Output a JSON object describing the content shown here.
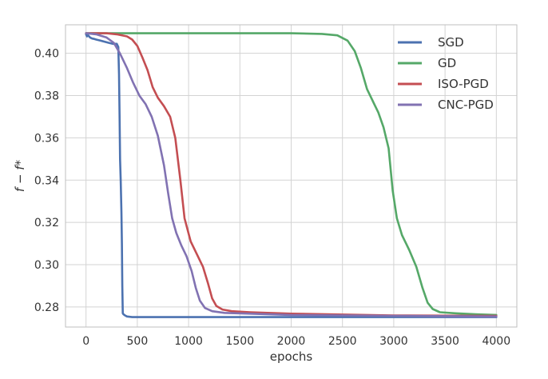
{
  "chart_data": {
    "type": "line",
    "title": "",
    "xlabel": "epochs",
    "ylabel": "f − f*",
    "xlim": [
      -200,
      4200
    ],
    "ylim": [
      0.2705,
      0.4135
    ],
    "xticks": [
      0,
      500,
      1000,
      1500,
      2000,
      2500,
      3000,
      3500,
      4000
    ],
    "xtick_labels": [
      "0",
      "500",
      "1000",
      "1500",
      "2000",
      "2500",
      "3000",
      "3500",
      "4000"
    ],
    "yticks": [
      0.28,
      0.3,
      0.32,
      0.34,
      0.36,
      0.38,
      0.4
    ],
    "ytick_labels": [
      "0.28",
      "0.30",
      "0.32",
      "0.34",
      "0.36",
      "0.38",
      "0.40"
    ],
    "grid": true,
    "legend_position": "top-right",
    "series": [
      {
        "name": "SGD",
        "color": "#4c72b0",
        "points": [
          [
            0,
            0.409
          ],
          [
            10,
            0.408
          ],
          [
            20,
            0.4085
          ],
          [
            40,
            0.4075
          ],
          [
            60,
            0.407
          ],
          [
            80,
            0.4068
          ],
          [
            100,
            0.4065
          ],
          [
            140,
            0.406
          ],
          [
            180,
            0.4055
          ],
          [
            220,
            0.405
          ],
          [
            260,
            0.4045
          ],
          [
            300,
            0.4045
          ],
          [
            315,
            0.403
          ],
          [
            322,
            0.39
          ],
          [
            327,
            0.37
          ],
          [
            332,
            0.35
          ],
          [
            338,
            0.34
          ],
          [
            345,
            0.325
          ],
          [
            350,
            0.31
          ],
          [
            354,
            0.29
          ],
          [
            358,
            0.277
          ],
          [
            365,
            0.2765
          ],
          [
            380,
            0.276
          ],
          [
            400,
            0.2755
          ],
          [
            450,
            0.2752
          ],
          [
            600,
            0.2752
          ],
          [
            1000,
            0.2752
          ],
          [
            2000,
            0.2752
          ],
          [
            3000,
            0.2752
          ],
          [
            4000,
            0.2752
          ]
        ]
      },
      {
        "name": "GD",
        "color": "#55a868",
        "points": [
          [
            0,
            0.4095
          ],
          [
            500,
            0.4095
          ],
          [
            1000,
            0.4095
          ],
          [
            1500,
            0.4095
          ],
          [
            2000,
            0.4095
          ],
          [
            2300,
            0.4092
          ],
          [
            2450,
            0.4085
          ],
          [
            2550,
            0.406
          ],
          [
            2620,
            0.401
          ],
          [
            2680,
            0.393
          ],
          [
            2740,
            0.383
          ],
          [
            2800,
            0.377
          ],
          [
            2850,
            0.372
          ],
          [
            2900,
            0.365
          ],
          [
            2950,
            0.355
          ],
          [
            2990,
            0.335
          ],
          [
            3030,
            0.322
          ],
          [
            3080,
            0.314
          ],
          [
            3150,
            0.307
          ],
          [
            3220,
            0.299
          ],
          [
            3280,
            0.289
          ],
          [
            3330,
            0.282
          ],
          [
            3380,
            0.279
          ],
          [
            3450,
            0.2775
          ],
          [
            3600,
            0.277
          ],
          [
            3800,
            0.2765
          ],
          [
            4000,
            0.2762
          ]
        ]
      },
      {
        "name": "ISO-PGD",
        "color": "#c44e52",
        "points": [
          [
            0,
            0.4095
          ],
          [
            200,
            0.4095
          ],
          [
            300,
            0.409
          ],
          [
            400,
            0.408
          ],
          [
            450,
            0.4065
          ],
          [
            500,
            0.4035
          ],
          [
            550,
            0.398
          ],
          [
            600,
            0.392
          ],
          [
            650,
            0.384
          ],
          [
            700,
            0.379
          ],
          [
            760,
            0.375
          ],
          [
            820,
            0.37
          ],
          [
            870,
            0.36
          ],
          [
            920,
            0.34
          ],
          [
            960,
            0.322
          ],
          [
            1020,
            0.311
          ],
          [
            1080,
            0.305
          ],
          [
            1140,
            0.299
          ],
          [
            1190,
            0.291
          ],
          [
            1230,
            0.284
          ],
          [
            1270,
            0.2805
          ],
          [
            1330,
            0.2788
          ],
          [
            1420,
            0.278
          ],
          [
            1600,
            0.2775
          ],
          [
            2000,
            0.2768
          ],
          [
            3000,
            0.276
          ],
          [
            4000,
            0.2758
          ]
        ]
      },
      {
        "name": "CNC-PGD",
        "color": "#8172b2",
        "points": [
          [
            0,
            0.4095
          ],
          [
            100,
            0.409
          ],
          [
            200,
            0.4075
          ],
          [
            270,
            0.405
          ],
          [
            330,
            0.4
          ],
          [
            400,
            0.393
          ],
          [
            460,
            0.386
          ],
          [
            520,
            0.38
          ],
          [
            580,
            0.376
          ],
          [
            640,
            0.37
          ],
          [
            700,
            0.361
          ],
          [
            760,
            0.347
          ],
          [
            800,
            0.334
          ],
          [
            840,
            0.322
          ],
          [
            880,
            0.315
          ],
          [
            930,
            0.309
          ],
          [
            980,
            0.304
          ],
          [
            1030,
            0.297
          ],
          [
            1070,
            0.289
          ],
          [
            1110,
            0.283
          ],
          [
            1160,
            0.2795
          ],
          [
            1230,
            0.278
          ],
          [
            1350,
            0.2772
          ],
          [
            1600,
            0.2768
          ],
          [
            2000,
            0.2762
          ],
          [
            3000,
            0.2758
          ],
          [
            4000,
            0.2755
          ]
        ]
      }
    ]
  }
}
